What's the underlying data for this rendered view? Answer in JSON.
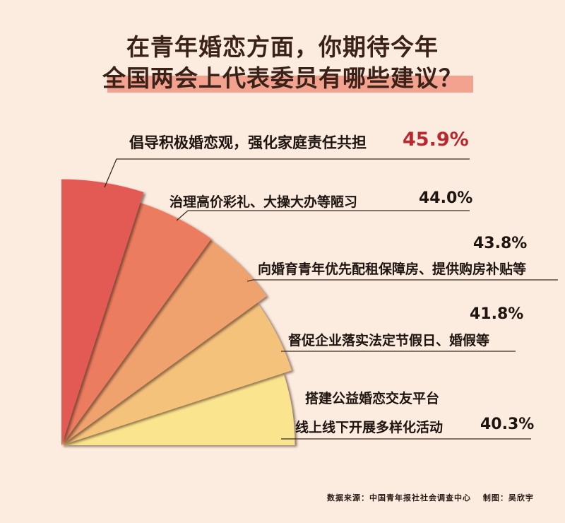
{
  "title": {
    "line1": "在青年婚恋方面，你期待今年",
    "line2": "全国两会上代表委员有哪些建议？"
  },
  "chart_data": {
    "type": "pie",
    "subtype": "rose",
    "categories": [
      "倡导积极婚恋观，强化家庭责任共担",
      "治理高价彩礼、大操大办等陋习",
      "向婚育青年优先配租保障房、提供购房补贴等",
      "督促企业落实法定节假日、婚假等",
      "搭建公益婚恋交友平台 线上线下开展多样化活动"
    ],
    "values": [
      45.9,
      44.0,
      43.8,
      41.8,
      40.3
    ],
    "labels": [
      "45.9%",
      "44.0%",
      "43.8%",
      "41.8%",
      "40.3%"
    ],
    "colors": [
      "#e35a55",
      "#ec7b61",
      "#f0a26e",
      "#f5c27c",
      "#fbe48e"
    ],
    "highlight_color": "#b8282e"
  },
  "labels": {
    "l0": "倡导积极婚恋观，强化家庭责任共担",
    "l1": "治理高价彩礼、大操大办等陋习",
    "l2": "向婚育青年优先配租保障房、提供购房补贴等",
    "l3": "督促企业落实法定节假日、婚假等",
    "l4a": "搭建公益婚恋交友平台",
    "l4b": "线上线下开展多样化活动"
  },
  "footer": "数据来源：中国青年报社社会调查中心　 制图：吴欣宇"
}
